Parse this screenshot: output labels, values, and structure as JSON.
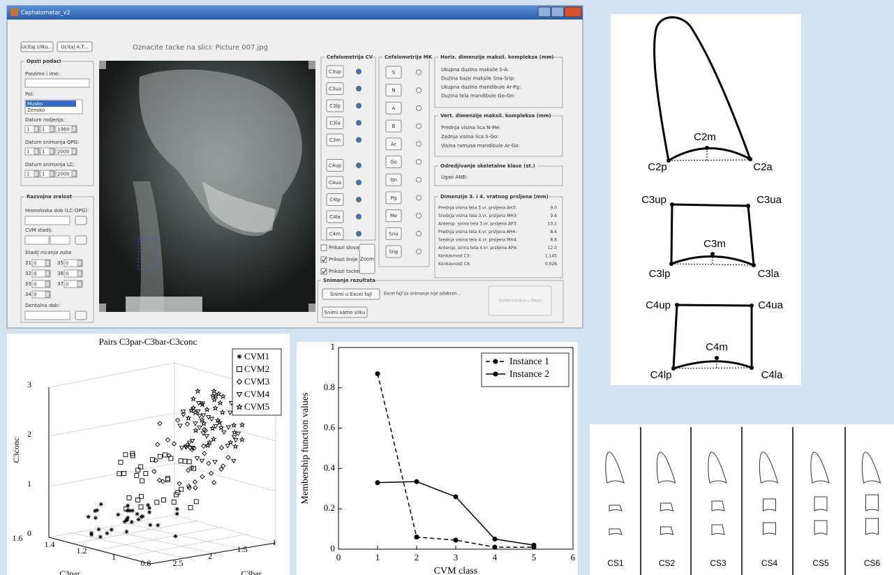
{
  "window": {
    "title": "Cephalometar_v2",
    "buttons_top": [
      "Ucitaj sliku...",
      "Ucitaj A.T..."
    ],
    "instruction": "Oznacite tacke na slici:  Picture 007.jpg",
    "general": {
      "title": "Opsti podaci",
      "name_label": "Prezime i ime:",
      "sex_label": "Pol:",
      "sex_options": [
        "Musko",
        "Zensko"
      ],
      "dates": [
        {
          "label": "Datum rodjenja:",
          "values": [
            "1",
            "1",
            "1960"
          ]
        },
        {
          "label": "Datum snimanja OPG:",
          "values": [
            "1",
            "1",
            "2000"
          ]
        },
        {
          "label": "Datum snimanja LC:",
          "values": [
            "1",
            "1",
            "2000"
          ]
        }
      ]
    },
    "maturity": {
      "title": "Razvojna zrelost",
      "chrono_label": "Hronoloska dob (LC-OPG):",
      "cvm_label": "CVM stadij:",
      "teeth_label": "Stadij nicanja zuba",
      "teeth": [
        [
          "31",
          "0"
        ],
        [
          "32",
          "0"
        ],
        [
          "33",
          "0"
        ],
        [
          "34",
          "0"
        ],
        [
          "35",
          "0"
        ],
        [
          "36",
          "0"
        ],
        [
          "37",
          "0"
        ]
      ],
      "dental_label": "Dentalna dob:"
    },
    "cv": {
      "title": "Cefalometrija CV",
      "points": [
        "C3up",
        "C3ua",
        "C3lp",
        "C3la",
        "C3m",
        "C4up",
        "C4ua",
        "C4lp",
        "C4la",
        "C4m"
      ]
    },
    "mk": {
      "title": "Cefalometrija MK",
      "points": [
        "S",
        "N",
        "A",
        "B",
        "Ar",
        "Go",
        "Gn",
        "Pg",
        "Me",
        "Sna",
        "Snp"
      ]
    },
    "checks": [
      "Prikazi slova",
      "Prikazi linije",
      "Prikazi tacke"
    ],
    "zoom": "Zoom",
    "horiz": {
      "title": "Horiz. dimenzije maksil. kompleksa (mm)",
      "rows": [
        "Ukupna duzina maksile S-A:",
        "Duzina baze maksile Sna-Snp:",
        "Ukupna duzina mandibule Ar-Pg:",
        "Duzina tela mandibule Go-Gn:"
      ]
    },
    "vert": {
      "title": "Vert. dimenzije maksil. kompleksa (mm)",
      "rows": [
        "Prednja visina lica N-Me:",
        "Zadnja visina lica S-Go:",
        "Visina ramusa mandibule Ar-Go:"
      ]
    },
    "skclass": {
      "title": "Odredjivanje skeletalne klase (st.)",
      "rows": [
        "Ugao ANB:"
      ]
    },
    "dims": {
      "title": "Dimenzije 3. i 4. vratnog prsljena (mm)",
      "rows": [
        [
          "Prednja visina tela 3.vr. prsljena AH3:",
          "9.0"
        ],
        [
          "Srednja visina tela 3.vr. prsljena MH3:",
          "9.6"
        ],
        [
          "Anterop. sirina tela 3.vr. prsljena AP3:",
          "10.1"
        ],
        [
          "Prednja visina tela 4.vr. prsljena AH4:",
          "8.4"
        ],
        [
          "Srednja visina tela 4.vr. prsljena MH4:",
          "8.8"
        ],
        [
          "Anterop. sirina tela 4.vr. prsljena AP4:",
          "12.0"
        ],
        [
          "Konkavnost C3:",
          "1.145"
        ],
        [
          "Konkavnost C4:",
          "0.026"
        ]
      ]
    },
    "save": {
      "title": "Snimanje rezultata",
      "excel": "Snimi u Excel fajl",
      "image": "Snimi samo sliku",
      "note": "Excel fajl za snimanje nije odabran...",
      "db": "Snimi karticu u Bazu"
    }
  },
  "figure_3d": {
    "title": "Pairs C3par-C3bar-C3conc",
    "zlabel": "C3conc",
    "xlabel": "C3par",
    "ylabel": "C3bar",
    "zticks": [
      "0",
      "1",
      "2",
      "3"
    ],
    "xticks": [
      "1.6",
      "1.4",
      "1.2",
      "1",
      "0.8"
    ],
    "yticks": [
      "2.5",
      "2",
      "1.5",
      "1"
    ],
    "legend": [
      "CVM1",
      "CVM2",
      "CVM3",
      "CVM4",
      "CVM5"
    ]
  },
  "chart_data": {
    "type": "line",
    "xlabel": "CVM class",
    "ylabel": "Membership function values",
    "x": [
      1,
      2,
      3,
      4,
      5
    ],
    "series": [
      {
        "name": "Instance 1",
        "color": "#000000",
        "line_style": "dashed",
        "values": [
          0.87,
          0.06,
          0.045,
          0.01,
          0.01
        ]
      },
      {
        "name": "Instance 2",
        "color": "#000000",
        "line_style": "solid",
        "values": [
          0.33,
          0.335,
          0.26,
          0.05,
          0.02
        ]
      }
    ],
    "xlim": [
      0,
      6
    ],
    "xticks": [
      0,
      1,
      2,
      3,
      4,
      5,
      6
    ],
    "ylim": [
      0,
      1
    ],
    "yticks": [
      0,
      0.2,
      0.4,
      0.6,
      0.8,
      1
    ],
    "legend": "upper right",
    "grid": false
  },
  "diagram": {
    "labels": [
      "C2m",
      "C2p",
      "C2a",
      "C3up",
      "C3ua",
      "C3m",
      "C3lp",
      "C3la",
      "C4up",
      "C4ua",
      "C4m",
      "C4lp",
      "C4la"
    ]
  },
  "stages": {
    "labels": [
      "CS1",
      "CS2",
      "CS3",
      "CS4",
      "CS5",
      "CS6"
    ]
  }
}
